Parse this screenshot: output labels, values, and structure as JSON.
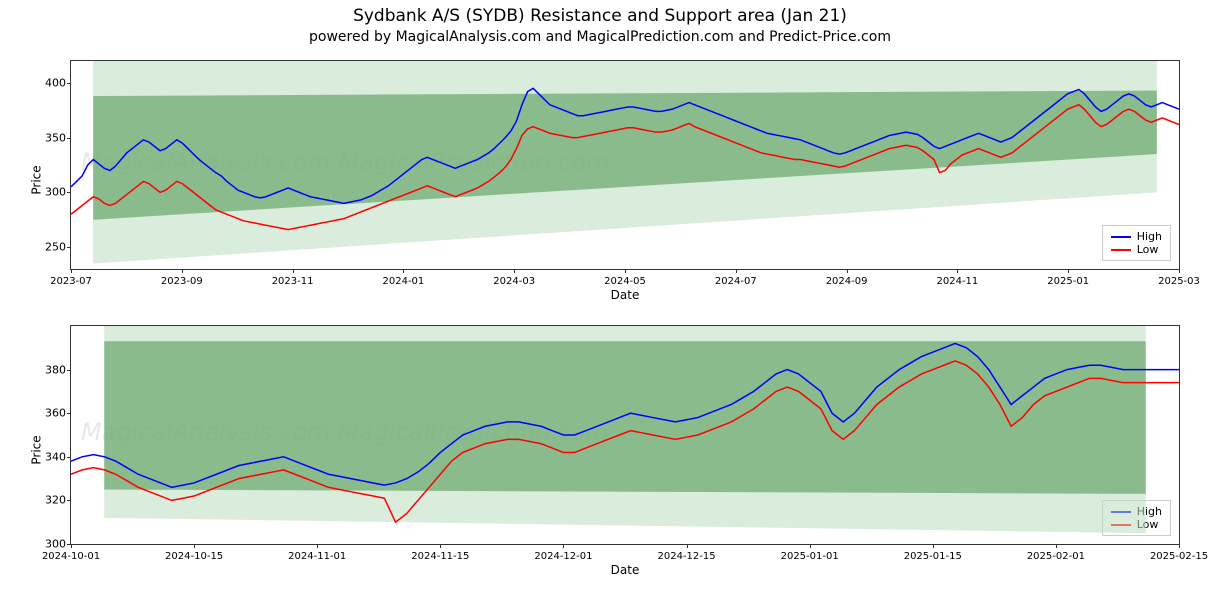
{
  "title": "Sydbank A/S (SYDB) Resistance and Support area (Jan 21)",
  "subtitle": "powered by MagicalAnalysis.com and MagicalPrediction.com and Predict-Price.com",
  "watermark_text": "MagicalAnalysis.com    MagicalPrediction.com",
  "legend": {
    "high": "High",
    "low": "Low"
  },
  "colors": {
    "high_line": "#0000ff",
    "low_line": "#ff0000",
    "band_dark": "#6dab72",
    "band_light": "#bcdcc0",
    "background": "#ffffff",
    "axis": "#333333",
    "watermark": "#e8e8e8"
  },
  "font": {
    "title_size": 17,
    "subtitle_size": 14,
    "tick_size": 11,
    "label_size": 12
  },
  "line_width": 1.5,
  "chart_top": {
    "type": "line",
    "xlabel": "Date",
    "ylabel": "Price",
    "ylim": [
      230,
      420
    ],
    "yticks": [
      250,
      300,
      350,
      400
    ],
    "xticks": [
      "2023-07",
      "2023-09",
      "2023-11",
      "2024-01",
      "2024-03",
      "2024-05",
      "2024-07",
      "2024-09",
      "2024-11",
      "2025-01",
      "2025-03"
    ],
    "x_count": 200,
    "bands": [
      {
        "fill": "band_light",
        "poly": [
          [
            0.02,
            235
          ],
          [
            0.98,
            300
          ],
          [
            0.98,
            420
          ],
          [
            0.02,
            420
          ]
        ]
      },
      {
        "fill": "band_dark",
        "poly": [
          [
            0.02,
            275
          ],
          [
            0.98,
            335
          ],
          [
            0.98,
            393
          ],
          [
            0.02,
            388
          ]
        ]
      }
    ],
    "series_high": [
      305,
      310,
      315,
      325,
      330,
      326,
      322,
      320,
      324,
      330,
      336,
      340,
      344,
      348,
      346,
      342,
      338,
      340,
      344,
      348,
      345,
      340,
      335,
      330,
      326,
      322,
      318,
      315,
      310,
      306,
      302,
      300,
      298,
      296,
      295,
      296,
      298,
      300,
      302,
      304,
      302,
      300,
      298,
      296,
      295,
      294,
      293,
      292,
      291,
      290,
      291,
      292,
      293,
      295,
      297,
      300,
      303,
      306,
      310,
      314,
      318,
      322,
      326,
      330,
      332,
      330,
      328,
      326,
      324,
      322,
      324,
      326,
      328,
      330,
      333,
      336,
      340,
      345,
      350,
      356,
      365,
      380,
      392,
      395,
      390,
      385,
      380,
      378,
      376,
      374,
      372,
      370,
      370,
      371,
      372,
      373,
      374,
      375,
      376,
      377,
      378,
      378,
      377,
      376,
      375,
      374,
      374,
      375,
      376,
      378,
      380,
      382,
      380,
      378,
      376,
      374,
      372,
      370,
      368,
      366,
      364,
      362,
      360,
      358,
      356,
      354,
      353,
      352,
      351,
      350,
      349,
      348,
      346,
      344,
      342,
      340,
      338,
      336,
      335,
      336,
      338,
      340,
      342,
      344,
      346,
      348,
      350,
      352,
      353,
      354,
      355,
      354,
      353,
      350,
      346,
      342,
      340,
      342,
      344,
      346,
      348,
      350,
      352,
      354,
      352,
      350,
      348,
      346,
      348,
      350,
      354,
      358,
      362,
      366,
      370,
      374,
      378,
      382,
      386,
      390,
      392,
      394,
      390,
      384,
      378,
      374,
      376,
      380,
      384,
      388,
      390,
      388,
      384,
      380,
      378,
      380,
      382,
      380,
      378,
      376
    ],
    "series_low": [
      280,
      284,
      288,
      292,
      296,
      294,
      290,
      288,
      290,
      294,
      298,
      302,
      306,
      310,
      308,
      304,
      300,
      302,
      306,
      310,
      308,
      304,
      300,
      296,
      292,
      288,
      284,
      282,
      280,
      278,
      276,
      274,
      273,
      272,
      271,
      270,
      269,
      268,
      267,
      266,
      267,
      268,
      269,
      270,
      271,
      272,
      273,
      274,
      275,
      276,
      278,
      280,
      282,
      284,
      286,
      288,
      290,
      292,
      294,
      296,
      298,
      300,
      302,
      304,
      306,
      304,
      302,
      300,
      298,
      296,
      298,
      300,
      302,
      304,
      307,
      310,
      314,
      318,
      323,
      330,
      340,
      352,
      358,
      360,
      358,
      356,
      354,
      353,
      352,
      351,
      350,
      350,
      351,
      352,
      353,
      354,
      355,
      356,
      357,
      358,
      359,
      359,
      358,
      357,
      356,
      355,
      355,
      356,
      357,
      359,
      361,
      363,
      360,
      358,
      356,
      354,
      352,
      350,
      348,
      346,
      344,
      342,
      340,
      338,
      336,
      335,
      334,
      333,
      332,
      331,
      330,
      330,
      329,
      328,
      327,
      326,
      325,
      324,
      323,
      324,
      326,
      328,
      330,
      332,
      334,
      336,
      338,
      340,
      341,
      342,
      343,
      342,
      341,
      338,
      334,
      330,
      318,
      320,
      326,
      330,
      334,
      336,
      338,
      340,
      338,
      336,
      334,
      332,
      334,
      336,
      340,
      344,
      348,
      352,
      356,
      360,
      364,
      368,
      372,
      376,
      378,
      380,
      376,
      370,
      364,
      360,
      362,
      366,
      370,
      374,
      376,
      374,
      370,
      366,
      364,
      366,
      368,
      366,
      364,
      362
    ]
  },
  "chart_bottom": {
    "type": "line",
    "xlabel": "Date",
    "ylabel": "Price",
    "ylim": [
      300,
      400
    ],
    "yticks": [
      300,
      320,
      340,
      360,
      380
    ],
    "xticks": [
      "2024-10-01",
      "2024-10-15",
      "2024-11-01",
      "2024-11-15",
      "2024-12-01",
      "2024-12-15",
      "2025-01-01",
      "2025-01-15",
      "2025-02-01",
      "2025-02-15"
    ],
    "x_count": 100,
    "bands": [
      {
        "fill": "band_light",
        "poly": [
          [
            0.03,
            312
          ],
          [
            0.97,
            305
          ],
          [
            0.97,
            400
          ],
          [
            0.03,
            400
          ]
        ]
      },
      {
        "fill": "band_dark",
        "poly": [
          [
            0.03,
            325
          ],
          [
            0.97,
            323
          ],
          [
            0.97,
            393
          ],
          [
            0.03,
            393
          ]
        ]
      }
    ],
    "series_high": [
      338,
      340,
      341,
      340,
      338,
      335,
      332,
      330,
      328,
      326,
      327,
      328,
      330,
      332,
      334,
      336,
      337,
      338,
      339,
      340,
      338,
      336,
      334,
      332,
      331,
      330,
      329,
      328,
      327,
      328,
      330,
      333,
      337,
      342,
      346,
      350,
      352,
      354,
      355,
      356,
      356,
      355,
      354,
      352,
      350,
      350,
      352,
      354,
      356,
      358,
      360,
      359,
      358,
      357,
      356,
      357,
      358,
      360,
      362,
      364,
      367,
      370,
      374,
      378,
      380,
      378,
      374,
      370,
      360,
      356,
      360,
      366,
      372,
      376,
      380,
      383,
      386,
      388,
      390,
      392,
      390,
      386,
      380,
      372,
      364,
      368,
      372,
      376,
      378,
      380,
      381,
      382,
      382,
      381,
      380,
      380,
      380,
      380,
      380,
      380
    ],
    "series_low": [
      332,
      334,
      335,
      334,
      332,
      329,
      326,
      324,
      322,
      320,
      321,
      322,
      324,
      326,
      328,
      330,
      331,
      332,
      333,
      334,
      332,
      330,
      328,
      326,
      325,
      324,
      323,
      322,
      321,
      310,
      314,
      320,
      326,
      332,
      338,
      342,
      344,
      346,
      347,
      348,
      348,
      347,
      346,
      344,
      342,
      342,
      344,
      346,
      348,
      350,
      352,
      351,
      350,
      349,
      348,
      349,
      350,
      352,
      354,
      356,
      359,
      362,
      366,
      370,
      372,
      370,
      366,
      362,
      352,
      348,
      352,
      358,
      364,
      368,
      372,
      375,
      378,
      380,
      382,
      384,
      382,
      378,
      372,
      364,
      354,
      358,
      364,
      368,
      370,
      372,
      374,
      376,
      376,
      375,
      374,
      374,
      374,
      374,
      374,
      374
    ]
  }
}
